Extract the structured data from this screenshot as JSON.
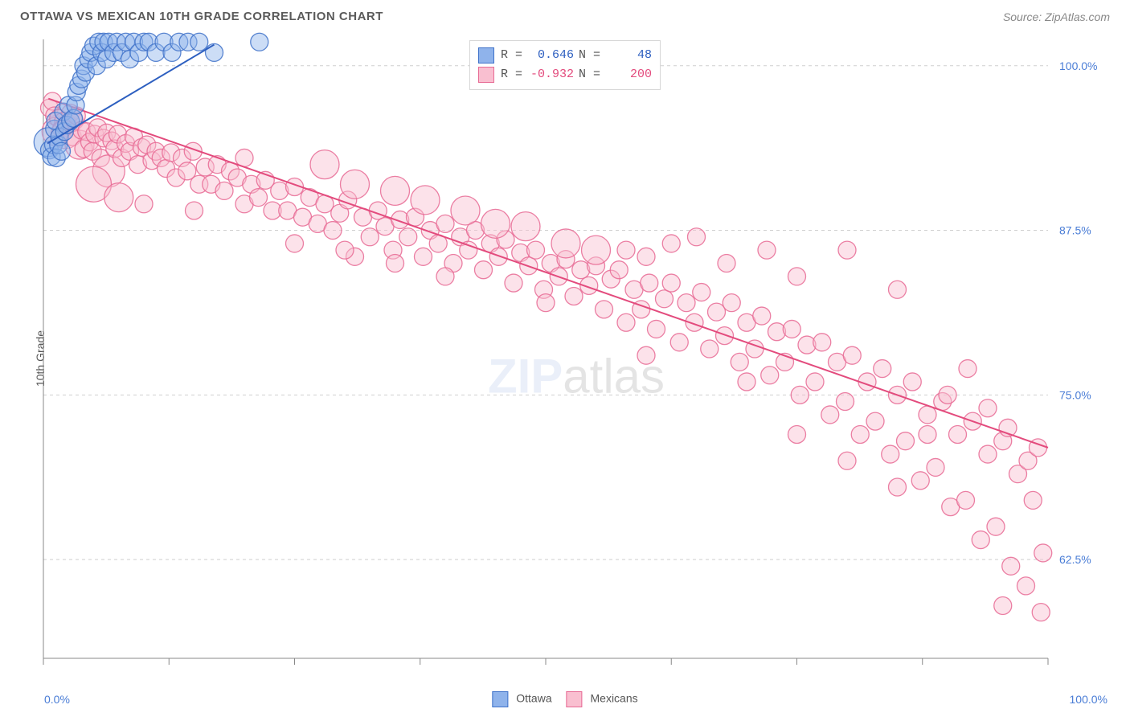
{
  "header": {
    "title": "OTTAWA VS MEXICAN 10TH GRADE CORRELATION CHART",
    "source": "Source: ZipAtlas.com"
  },
  "ylabel": "10th Grade",
  "watermark": {
    "zip": "ZIP",
    "rest": "atlas"
  },
  "chart": {
    "type": "scatter",
    "background_color": "#ffffff",
    "grid_color": "#cfcfcf",
    "axis_color": "#888888",
    "marker_radius": 11,
    "marker_opacity": 0.45,
    "marker_stroke_opacity": 0.85,
    "line_width": 2,
    "xlim": [
      0,
      100
    ],
    "ylim": [
      55,
      102
    ],
    "y_gridlines": [
      62.5,
      75.0,
      87.5,
      100.0
    ],
    "y_tick_labels": [
      "62.5%",
      "75.0%",
      "87.5%",
      "100.0%"
    ],
    "x_minor_ticks": [
      0,
      12.5,
      25,
      37.5,
      50,
      62.5,
      75,
      87.5,
      100
    ],
    "x_end_labels": [
      "0.0%",
      "100.0%"
    ]
  },
  "series": {
    "ottawa": {
      "label": "Ottawa",
      "fill": "#8fb3eb",
      "stroke": "#3f72c9",
      "trend_stroke": "#2d5fc0",
      "r_value": "0.646",
      "n_value": "48",
      "trend": {
        "x1": 0.4,
        "y1": 94.1,
        "x2": 17.0,
        "y2": 101.6
      },
      "points": [
        [
          0.5,
          94.2,
          18
        ],
        [
          0.6,
          93.6,
          11
        ],
        [
          0.8,
          93.1,
          11
        ],
        [
          1.0,
          94.0,
          11
        ],
        [
          1.1,
          95.2,
          11
        ],
        [
          1.2,
          95.8,
          11
        ],
        [
          1.3,
          93.0,
          11
        ],
        [
          1.5,
          94.0,
          11
        ],
        [
          1.6,
          94.6,
          11
        ],
        [
          1.8,
          93.5,
          11
        ],
        [
          2.0,
          96.5,
          11
        ],
        [
          2.1,
          95.0,
          11
        ],
        [
          2.3,
          95.5,
          11
        ],
        [
          2.5,
          97.0,
          11
        ],
        [
          2.7,
          95.8,
          11
        ],
        [
          3.0,
          96.0,
          11
        ],
        [
          3.2,
          97.0,
          11
        ],
        [
          3.3,
          98.0,
          11
        ],
        [
          3.5,
          98.5,
          11
        ],
        [
          3.8,
          99.0,
          11
        ],
        [
          4.0,
          100.0,
          11
        ],
        [
          4.2,
          99.5,
          11
        ],
        [
          4.5,
          100.5,
          11
        ],
        [
          4.7,
          101.0,
          11
        ],
        [
          5.0,
          101.5,
          11
        ],
        [
          5.3,
          100.0,
          11
        ],
        [
          5.5,
          101.8,
          11
        ],
        [
          5.8,
          101.0,
          11
        ],
        [
          6.0,
          101.8,
          11
        ],
        [
          6.3,
          100.5,
          11
        ],
        [
          6.5,
          101.8,
          11
        ],
        [
          7.0,
          101.0,
          11
        ],
        [
          7.3,
          101.8,
          11
        ],
        [
          7.8,
          101.0,
          11
        ],
        [
          8.2,
          101.8,
          11
        ],
        [
          8.6,
          100.5,
          11
        ],
        [
          9.0,
          101.8,
          11
        ],
        [
          9.5,
          101.0,
          11
        ],
        [
          10.0,
          101.8,
          11
        ],
        [
          10.5,
          101.8,
          11
        ],
        [
          11.2,
          101.0,
          11
        ],
        [
          12.0,
          101.8,
          11
        ],
        [
          12.8,
          101.0,
          11
        ],
        [
          13.5,
          101.8,
          11
        ],
        [
          14.4,
          101.8,
          11
        ],
        [
          15.5,
          101.8,
          11
        ],
        [
          17.0,
          101.0,
          11
        ],
        [
          21.5,
          101.8,
          11
        ]
      ]
    },
    "mexicans": {
      "label": "Mexicans",
      "fill": "#f9bfd0",
      "stroke": "#e76a94",
      "trend_stroke": "#e34b7d",
      "r_value": "-0.932",
      "n_value": "200",
      "trend": {
        "x1": 0.5,
        "y1": 97.5,
        "x2": 100.0,
        "y2": 71.0
      },
      "points": [
        [
          0.6,
          96.8,
          11
        ],
        [
          0.9,
          97.3,
          11
        ],
        [
          1.1,
          96.2,
          11
        ],
        [
          1.3,
          95.0,
          18
        ],
        [
          1.5,
          96.0,
          11
        ],
        [
          1.8,
          95.2,
          11
        ],
        [
          2.0,
          95.8,
          11
        ],
        [
          2.2,
          94.8,
          18
        ],
        [
          2.4,
          95.6,
          11
        ],
        [
          2.7,
          96.4,
          11
        ],
        [
          2.9,
          94.6,
          11
        ],
        [
          3.1,
          95.8,
          11
        ],
        [
          3.3,
          96.2,
          11
        ],
        [
          3.6,
          94.0,
          18
        ],
        [
          3.8,
          95.1,
          11
        ],
        [
          4.0,
          93.7,
          11
        ],
        [
          4.3,
          95.0,
          11
        ],
        [
          4.6,
          94.2,
          11
        ],
        [
          4.9,
          93.5,
          11
        ],
        [
          5.1,
          94.8,
          11
        ],
        [
          5.4,
          95.3,
          11
        ],
        [
          5.7,
          93.0,
          11
        ],
        [
          6.0,
          94.5,
          11
        ],
        [
          6.3,
          94.9,
          11
        ],
        [
          6.5,
          92.0,
          20
        ],
        [
          6.8,
          94.3,
          11
        ],
        [
          7.1,
          93.7,
          11
        ],
        [
          7.4,
          94.8,
          11
        ],
        [
          7.8,
          93.0,
          11
        ],
        [
          8.2,
          94.1,
          11
        ],
        [
          8.6,
          93.5,
          11
        ],
        [
          9.0,
          94.6,
          11
        ],
        [
          9.4,
          92.5,
          11
        ],
        [
          9.8,
          93.8,
          11
        ],
        [
          10.3,
          94.0,
          11
        ],
        [
          10.8,
          92.8,
          11
        ],
        [
          11.2,
          93.5,
          11
        ],
        [
          11.7,
          93.0,
          11
        ],
        [
          12.2,
          92.2,
          11
        ],
        [
          12.7,
          93.4,
          11
        ],
        [
          13.2,
          91.5,
          11
        ],
        [
          13.8,
          93.0,
          11
        ],
        [
          14.3,
          92.0,
          11
        ],
        [
          14.9,
          93.5,
          11
        ],
        [
          15.5,
          91.0,
          11
        ],
        [
          16.1,
          92.3,
          11
        ],
        [
          16.7,
          91.0,
          11
        ],
        [
          17.3,
          92.5,
          11
        ],
        [
          18.0,
          90.5,
          11
        ],
        [
          18.6,
          92.0,
          11
        ],
        [
          19.3,
          91.5,
          11
        ],
        [
          20.0,
          89.5,
          11
        ],
        [
          20.7,
          91.0,
          11
        ],
        [
          21.4,
          90.0,
          11
        ],
        [
          22.1,
          91.3,
          11
        ],
        [
          22.8,
          89.0,
          11
        ],
        [
          23.5,
          90.5,
          11
        ],
        [
          24.3,
          89.0,
          11
        ],
        [
          25.0,
          90.8,
          11
        ],
        [
          25.8,
          88.5,
          11
        ],
        [
          26.5,
          90.0,
          11
        ],
        [
          27.3,
          88.0,
          11
        ],
        [
          28.0,
          89.5,
          11
        ],
        [
          28.8,
          87.5,
          11
        ],
        [
          29.5,
          88.8,
          11
        ],
        [
          30.3,
          89.8,
          11
        ],
        [
          31.0,
          85.5,
          11
        ],
        [
          31.8,
          88.5,
          11
        ],
        [
          32.5,
          87.0,
          11
        ],
        [
          33.3,
          89.0,
          11
        ],
        [
          34.0,
          87.8,
          11
        ],
        [
          34.8,
          86.0,
          11
        ],
        [
          35.5,
          88.3,
          11
        ],
        [
          36.3,
          87.0,
          11
        ],
        [
          37.0,
          88.5,
          11
        ],
        [
          37.8,
          85.5,
          11
        ],
        [
          38.5,
          87.5,
          11
        ],
        [
          39.3,
          86.5,
          11
        ],
        [
          40.0,
          88.0,
          11
        ],
        [
          40.8,
          85.0,
          11
        ],
        [
          41.5,
          87.0,
          11
        ],
        [
          42.3,
          86.0,
          11
        ],
        [
          43.0,
          87.5,
          11
        ],
        [
          43.8,
          84.5,
          11
        ],
        [
          44.5,
          86.5,
          11
        ],
        [
          45.3,
          85.5,
          11
        ],
        [
          46.0,
          86.8,
          11
        ],
        [
          46.8,
          83.5,
          11
        ],
        [
          47.5,
          85.8,
          11
        ],
        [
          48.3,
          84.8,
          11
        ],
        [
          49.0,
          86.0,
          11
        ],
        [
          49.8,
          83.0,
          11
        ],
        [
          50.5,
          85.0,
          11
        ],
        [
          51.3,
          84.0,
          11
        ],
        [
          52.0,
          85.3,
          11
        ],
        [
          52.8,
          82.5,
          11
        ],
        [
          53.5,
          84.5,
          11
        ],
        [
          54.3,
          83.3,
          11
        ],
        [
          55.0,
          84.8,
          11
        ],
        [
          55.8,
          81.5,
          11
        ],
        [
          56.5,
          83.8,
          11
        ],
        [
          57.3,
          84.5,
          11
        ],
        [
          58.0,
          80.5,
          11
        ],
        [
          58.8,
          83.0,
          11
        ],
        [
          59.5,
          81.5,
          11
        ],
        [
          60.3,
          83.5,
          11
        ],
        [
          61.0,
          80.0,
          11
        ],
        [
          61.8,
          82.3,
          11
        ],
        [
          62.5,
          83.5,
          11
        ],
        [
          63.3,
          79.0,
          11
        ],
        [
          64.0,
          82.0,
          11
        ],
        [
          64.8,
          80.5,
          11
        ],
        [
          65.5,
          82.8,
          11
        ],
        [
          66.3,
          78.5,
          11
        ],
        [
          67.0,
          81.3,
          11
        ],
        [
          67.8,
          79.5,
          11
        ],
        [
          68.5,
          82.0,
          11
        ],
        [
          69.3,
          77.5,
          11
        ],
        [
          70.0,
          80.5,
          11
        ],
        [
          70.8,
          78.5,
          11
        ],
        [
          71.5,
          81.0,
          11
        ],
        [
          72.3,
          76.5,
          11
        ],
        [
          73.0,
          79.8,
          11
        ],
        [
          73.8,
          77.5,
          11
        ],
        [
          74.5,
          80.0,
          11
        ],
        [
          75.3,
          75.0,
          11
        ],
        [
          76.0,
          78.8,
          11
        ],
        [
          76.8,
          76.0,
          11
        ],
        [
          77.5,
          79.0,
          11
        ],
        [
          78.3,
          73.5,
          11
        ],
        [
          79.0,
          77.5,
          11
        ],
        [
          79.8,
          74.5,
          11
        ],
        [
          80.5,
          78.0,
          11
        ],
        [
          81.3,
          72.0,
          11
        ],
        [
          82.0,
          76.0,
          11
        ],
        [
          82.8,
          73.0,
          11
        ],
        [
          83.5,
          77.0,
          11
        ],
        [
          84.3,
          70.5,
          11
        ],
        [
          85.0,
          75.0,
          11
        ],
        [
          85.8,
          71.5,
          11
        ],
        [
          86.5,
          76.0,
          11
        ],
        [
          87.3,
          68.5,
          11
        ],
        [
          88.0,
          73.5,
          11
        ],
        [
          88.8,
          69.5,
          11
        ],
        [
          89.5,
          74.5,
          11
        ],
        [
          90.3,
          66.5,
          11
        ],
        [
          91.0,
          72.0,
          11
        ],
        [
          91.8,
          67.0,
          11
        ],
        [
          92.5,
          73.0,
          11
        ],
        [
          93.3,
          64.0,
          11
        ],
        [
          94.0,
          70.5,
          11
        ],
        [
          94.8,
          65.0,
          11
        ],
        [
          95.5,
          71.5,
          11
        ],
        [
          95.5,
          59.0,
          11
        ],
        [
          96.3,
          62.0,
          11
        ],
        [
          97.0,
          69.0,
          11
        ],
        [
          97.8,
          60.5,
          11
        ],
        [
          98.5,
          67.0,
          11
        ],
        [
          99.3,
          58.5,
          11
        ],
        [
          99.5,
          63.0,
          11
        ],
        [
          58.0,
          86.0,
          11
        ],
        [
          60.0,
          85.5,
          11
        ],
        [
          62.5,
          86.5,
          11
        ],
        [
          65.0,
          87.0,
          11
        ],
        [
          68.0,
          85.0,
          11
        ],
        [
          72.0,
          86.0,
          11
        ],
        [
          75.0,
          84.0,
          11
        ],
        [
          80.0,
          86.0,
          11
        ],
        [
          85.0,
          83.0,
          11
        ],
        [
          28.0,
          92.5,
          18
        ],
        [
          31.0,
          91.0,
          18
        ],
        [
          35.0,
          90.5,
          18
        ],
        [
          38.0,
          89.8,
          18
        ],
        [
          42.0,
          89.0,
          18
        ],
        [
          45.0,
          88.0,
          18
        ],
        [
          48.0,
          87.8,
          18
        ],
        [
          52.0,
          86.5,
          18
        ],
        [
          55.0,
          86.0,
          18
        ],
        [
          5.0,
          91.0,
          22
        ],
        [
          7.5,
          90.0,
          18
        ],
        [
          10.0,
          89.5,
          11
        ],
        [
          15.0,
          89.0,
          11
        ],
        [
          20.0,
          93.0,
          11
        ],
        [
          25.0,
          86.5,
          11
        ],
        [
          30.0,
          86.0,
          11
        ],
        [
          35.0,
          85.0,
          11
        ],
        [
          40.0,
          84.0,
          11
        ],
        [
          50.0,
          82.0,
          11
        ],
        [
          60.0,
          78.0,
          11
        ],
        [
          70.0,
          76.0,
          11
        ],
        [
          75.0,
          72.0,
          11
        ],
        [
          80.0,
          70.0,
          11
        ],
        [
          85.0,
          68.0,
          11
        ],
        [
          88.0,
          72.0,
          11
        ],
        [
          90.0,
          75.0,
          11
        ],
        [
          92.0,
          77.0,
          11
        ],
        [
          94.0,
          74.0,
          11
        ],
        [
          96.0,
          72.5,
          11
        ],
        [
          98.0,
          70.0,
          11
        ],
        [
          99.0,
          71.0,
          11
        ]
      ]
    }
  },
  "footer_legend": [
    {
      "label": "Ottawa",
      "fill": "#8fb3eb",
      "stroke": "#3f72c9"
    },
    {
      "label": "Mexicans",
      "fill": "#f9bfd0",
      "stroke": "#e76a94"
    }
  ]
}
